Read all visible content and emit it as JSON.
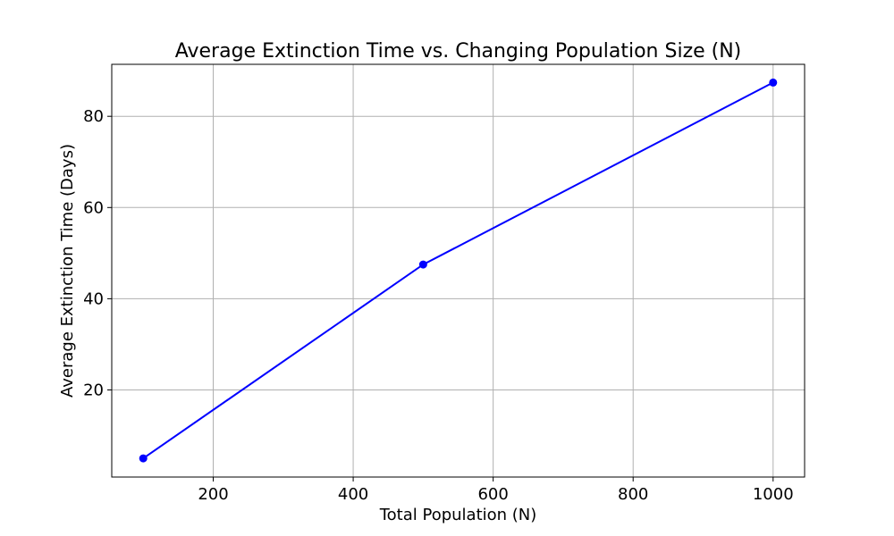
{
  "chart_data": {
    "type": "line",
    "title": "Average Extinction Time vs. Changing Population Size (N)",
    "xlabel": "Total Population (N)",
    "ylabel": "Average Extinction Time (Days)",
    "xlim": [
      55,
      1045
    ],
    "ylim": [
      0.9,
      91.4
    ],
    "xticks": [
      200,
      400,
      600,
      800,
      1000
    ],
    "yticks": [
      20,
      40,
      60,
      80
    ],
    "xtick_labels": [
      "200",
      "400",
      "600",
      "800",
      "1000"
    ],
    "ytick_labels": [
      "20",
      "40",
      "60",
      "80"
    ],
    "grid": true,
    "marker": "circle",
    "series": [
      {
        "x": [
          100,
          500,
          1000
        ],
        "y": [
          5.0,
          47.5,
          87.4
        ],
        "color": "#0000ff"
      }
    ]
  }
}
